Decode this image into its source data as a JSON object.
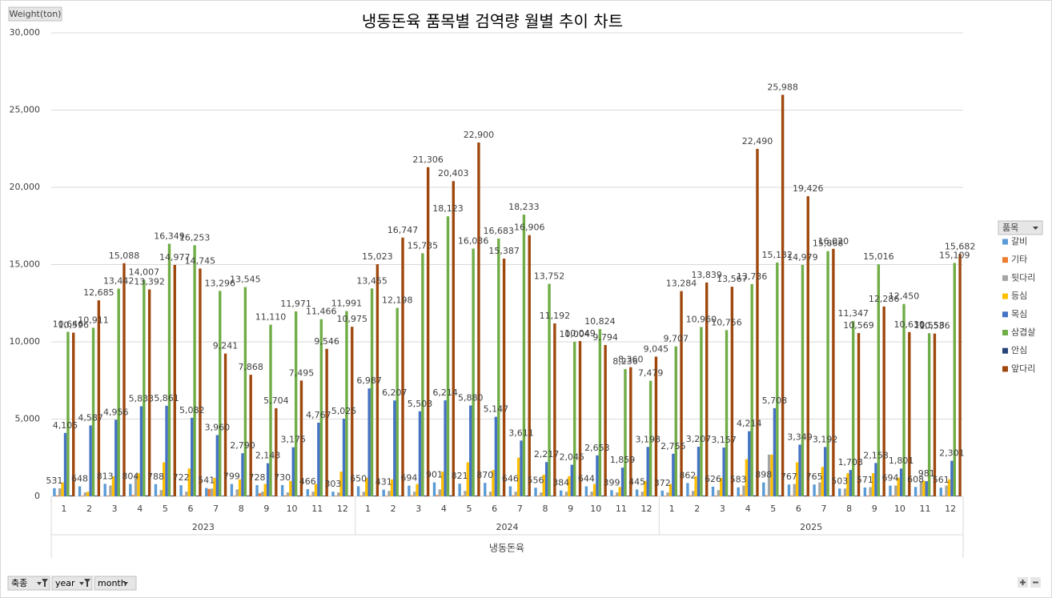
{
  "chart_data": {
    "type": "bar",
    "title": "냉동돈육  품목별 검역량 월별 추이 차트",
    "y_axis_title": "Weight(ton)",
    "x_axis_title": "냉동돈육",
    "categories": [
      "1",
      "2",
      "3",
      "4",
      "5",
      "6",
      "7",
      "8",
      "9",
      "10",
      "11",
      "12",
      "1",
      "2",
      "3",
      "4",
      "5",
      "6",
      "7",
      "8",
      "9",
      "10",
      "11",
      "12",
      "1",
      "2",
      "3",
      "4",
      "5",
      "6",
      "7",
      "8",
      "9",
      "10",
      "11",
      "12"
    ],
    "years": [
      "2023",
      "2024",
      "2025"
    ],
    "ylim": [
      0,
      30000
    ],
    "yticks": [
      0,
      {
        "value": 5000,
        "label": "5,000"
      },
      {
        "value": 10000,
        "label": "10,000"
      },
      {
        "value": 15000,
        "label": "15,000"
      },
      {
        "value": 20000,
        "label": "20,000"
      },
      {
        "value": 25000,
        "label": "25,000"
      },
      {
        "value": 30000,
        "label": "30,000"
      }
    ],
    "grid": true,
    "legend_title": "품목",
    "legend_position": "right",
    "filter_buttons": [
      "축종",
      "year",
      "month"
    ],
    "series": [
      {
        "name": "갈비",
        "color": "#5b9bd5",
        "show_labels": true,
        "values": [
          531,
          648,
          813,
          804,
          788,
          722,
          541,
          799,
          728,
          730,
          466,
          303,
          650,
          431,
          694,
          901,
          821,
          870,
          646,
          556,
          384,
          644,
          399,
          445,
          372,
          862,
          626,
          583,
          898,
          767,
          765,
          503,
          571,
          694,
          608,
          561
        ]
      },
      {
        "name": "기타",
        "color": "#ed7d31",
        "show_labels": false,
        "values": [
          60,
          40,
          50,
          80,
          60,
          50,
          480,
          40,
          200,
          60,
          50,
          40,
          50,
          40,
          60,
          80,
          50,
          40,
          60,
          50,
          40,
          50,
          40,
          40,
          40,
          60,
          50,
          80,
          60,
          50,
          60,
          40,
          50,
          60,
          40,
          50
        ]
      },
      {
        "name": "뒷다리",
        "color": "#a5a5a5",
        "show_labels": false,
        "values": [
          520,
          250,
          700,
          1400,
          400,
          300,
          500,
          450,
          300,
          250,
          300,
          250,
          300,
          350,
          300,
          450,
          350,
          300,
          300,
          250,
          300,
          300,
          250,
          300,
          250,
          350,
          400,
          700,
          2700,
          800,
          900,
          500,
          600,
          700,
          1000,
          700
        ]
      },
      {
        "name": "등심",
        "color": "#ffc000",
        "show_labels": false,
        "values": [
          900,
          300,
          1300,
          1500,
          2200,
          1800,
          1200,
          1100,
          800,
          1000,
          800,
          1600,
          1200,
          1100,
          800,
          1600,
          2200,
          1700,
          2500,
          1400,
          1300,
          800,
          600,
          1000,
          800,
          1300,
          1200,
          2400,
          2700,
          2200,
          1900,
          1500,
          1500,
          1200,
          1000,
          1100
        ]
      },
      {
        "name": "목심",
        "color": "#4472c4",
        "show_labels": true,
        "values": [
          4105,
          4587,
          4956,
          5833,
          5861,
          5082,
          3960,
          2790,
          2143,
          3175,
          4767,
          5025,
          6987,
          6207,
          5503,
          6214,
          5880,
          5147,
          3611,
          2217,
          2045,
          2653,
          1859,
          3198,
          2755,
          3207,
          3157,
          4214,
          5708,
          3349,
          3192,
          1703,
          2158,
          1801,
          981,
          2301
        ],
        "value_labels": [
          "4,105",
          "4,587",
          "4,956",
          "5,833",
          "5,861",
          "5,082",
          "3,960",
          "2,790",
          "2,143",
          "3,175",
          "4,767",
          "5,025",
          "6,987",
          "6,207",
          "5,503",
          "6,214",
          "5,880",
          "5,147",
          "3,611",
          "2,217",
          "2,045",
          "2,653",
          "1,859",
          "3,198",
          "2,755",
          "3,207",
          "3,157",
          "4,214",
          "5,708",
          "3,349",
          "3,192",
          "1,703",
          "2,158",
          "1,801",
          "981",
          "2,301"
        ]
      },
      {
        "name": "삼겹살",
        "color": "#70ad47",
        "show_labels": true,
        "values": [
          10646,
          10911,
          13442,
          14007,
          16349,
          16253,
          13296,
          13545,
          11110,
          11971,
          11466,
          11991,
          13455,
          12198,
          15735,
          18123,
          16036,
          16683,
          18233,
          13752,
          10004,
          10824,
          8236,
          7479,
          9707,
          10960,
          10756,
          13736,
          15132,
          14979,
          15868,
          11347,
          15016,
          12450,
          10558,
          15109
        ],
        "value_labels": [
          "10,646",
          "10,911",
          "13,442",
          "14,007",
          "16,349",
          "16,253",
          "13,296",
          "13,545",
          "11,110",
          "11,971",
          "11,466",
          "11,991",
          "13,455",
          "12,198",
          "15,735",
          "18,123",
          "16,036",
          "16,683",
          "18,233",
          "13,752",
          "10,004",
          "10,824",
          "8,236",
          "7,479",
          "9,707",
          "10,960",
          "10,756",
          "13,736",
          "15,132",
          "14,979",
          "15,868",
          "11,347",
          "15,016",
          "12,450",
          "10,558",
          "15,109"
        ]
      },
      {
        "name": "안심",
        "color": "#264478",
        "show_labels": false,
        "values": [
          60,
          50,
          50,
          60,
          50,
          50,
          40,
          50,
          40,
          50,
          40,
          40,
          50,
          40,
          50,
          60,
          50,
          40,
          50,
          40,
          40,
          50,
          40,
          40,
          40,
          50,
          50,
          60,
          60,
          50,
          50,
          40,
          40,
          50,
          40,
          40
        ]
      },
      {
        "name": "앞다리",
        "color": "#9e480e",
        "show_labels": true,
        "values": [
          10596,
          12685,
          15088,
          13392,
          14977,
          14745,
          9241,
          7868,
          5704,
          7495,
          9546,
          10975,
          15023,
          16747,
          21306,
          20403,
          22900,
          15387,
          16906,
          11192,
          10049,
          9794,
          8360,
          9045,
          13284,
          13839,
          13567,
          22490,
          25988,
          19426,
          16020,
          10569,
          12286,
          10630,
          10536,
          15682
        ],
        "value_labels": [
          "10,596",
          "12,685",
          "15,088",
          "13,392",
          "14,977",
          "14,745",
          "9,241",
          "7,868",
          "5,704",
          "7,495",
          "9,546",
          "10,975",
          "15,023",
          "16,747",
          "21,306",
          "20,403",
          "22,900",
          "15,387",
          "16,906",
          "11,192",
          "10,049",
          "9,794",
          "8,360",
          "9,045",
          "13,284",
          "13,839",
          "13,567",
          "22,490",
          "25,988",
          "19,426",
          "16,020",
          "10,569",
          "12,286",
          "10,630",
          "10,536",
          "15,682"
        ]
      }
    ]
  }
}
